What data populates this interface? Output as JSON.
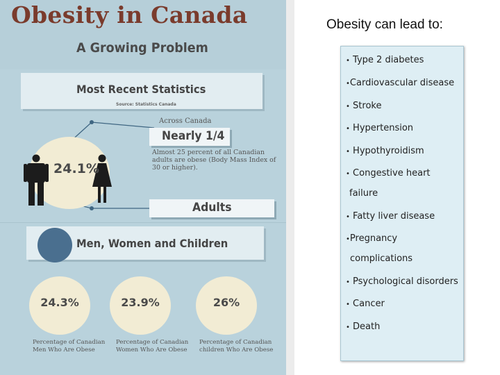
{
  "infographic": {
    "title": "Obesity in Canada",
    "subtitle": "A Growing Problem",
    "stats_heading": "Most Recent Statistics",
    "stats_source": "Source: Statistics Canada",
    "across_canada": "Across Canada",
    "nearly_label": "Nearly 1/4",
    "adults_description": "Almost 25 percent of all Canadian adults are obese (Body Mass Index of 30 or higher).",
    "overall_percentage": "24.1%",
    "adults_label": "Adults",
    "group_heading": "Men, Women and Children",
    "groups": [
      {
        "percentage": "24.3%",
        "caption": "Percentage of Canadian Men Who Are Obese"
      },
      {
        "percentage": "23.9%",
        "caption": "Percentage of Canadian Women Who Are Obese"
      },
      {
        "percentage": "26%",
        "caption": "Percentage of Canadian children Who Are Obese"
      }
    ],
    "colors": {
      "title": "#7a3b2c",
      "background": "#b9d2dc",
      "circle": "#f2ecd4",
      "accent_dot": "#4a6f8f"
    },
    "icons": [
      "man-icon",
      "woman-icon"
    ]
  },
  "right_panel": {
    "heading": "Obesity can lead to:",
    "bullet": "•",
    "items": [
      {
        "text": "Type 2 diabetes"
      },
      {
        "text": "Cardiovascular disease"
      },
      {
        "text": "Stroke"
      },
      {
        "text": "Hypertension"
      },
      {
        "text": "Hypothyroidism"
      },
      {
        "text": "Congestive heart"
      },
      {
        "text": "failure"
      },
      {
        "text": "Fatty liver disease"
      },
      {
        "text": "Pregnancy"
      },
      {
        "text": "complications"
      },
      {
        "text": "Psychological disorders"
      },
      {
        "text": "Cancer"
      },
      {
        "text": "Death"
      }
    ]
  }
}
